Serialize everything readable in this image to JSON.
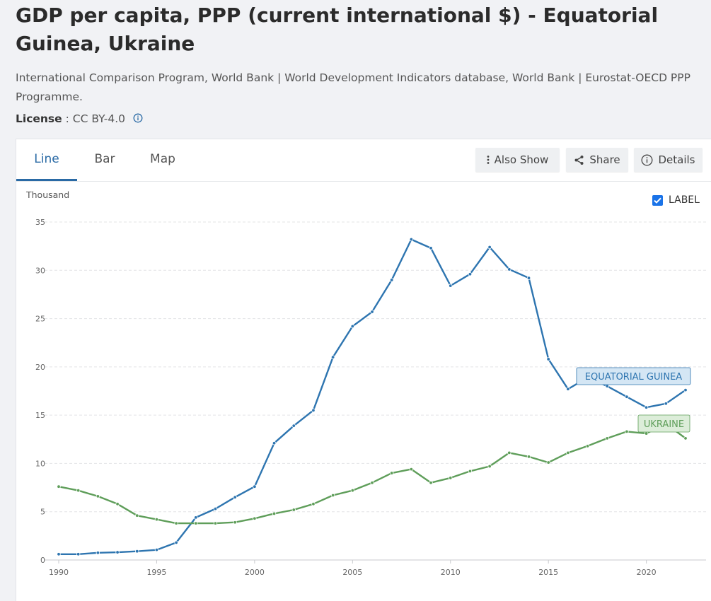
{
  "page": {
    "title": "GDP per capita, PPP (current international $) - Equatorial Guinea, Ukraine",
    "sources": "International Comparison Program, World Bank | World Development Indicators database, World Bank | Eurostat-OECD PPP Programme.",
    "license_label": "License",
    "license_sep": " : ",
    "license_value": "CC BY-4.0"
  },
  "tabs": {
    "line": "Line",
    "bar": "Bar",
    "map": "Map"
  },
  "toolbar": {
    "also_show": "Also Show",
    "share": "Share",
    "details": "Details"
  },
  "chart": {
    "y_unit": "Thousand",
    "label_toggle": "LABEL",
    "label_checked": true
  },
  "colors": {
    "equatorial_guinea": "#2e75b0",
    "ukraine": "#5f9e5a",
    "accent": "#2a6aa5"
  },
  "icons": [
    "more-vertical-icon",
    "share-icon",
    "info-icon",
    "checkbox-checked-icon"
  ],
  "chart_data": {
    "type": "line",
    "title": "GDP per capita, PPP (current international $) - Equatorial Guinea, Ukraine",
    "ylabel": "Thousand",
    "xlabel": "",
    "xlim": [
      1990,
      2022
    ],
    "ylim": [
      0,
      35
    ],
    "grid": true,
    "x_ticks": [
      1990,
      1995,
      2000,
      2005,
      2010,
      2015,
      2020
    ],
    "y_ticks": [
      0,
      5,
      10,
      15,
      20,
      25,
      30,
      35
    ],
    "x": [
      1990,
      1991,
      1992,
      1993,
      1994,
      1995,
      1996,
      1997,
      1998,
      1999,
      2000,
      2001,
      2002,
      2003,
      2004,
      2005,
      2006,
      2007,
      2008,
      2009,
      2010,
      2011,
      2012,
      2013,
      2014,
      2015,
      2016,
      2017,
      2018,
      2019,
      2020,
      2021,
      2022
    ],
    "series": [
      {
        "name": "Equatorial Guinea",
        "label": "EQUATORIAL GUINEA",
        "color": "#2e75b0",
        "values": [
          0.6,
          0.6,
          0.75,
          0.8,
          0.9,
          1.05,
          1.8,
          4.4,
          5.3,
          6.5,
          7.6,
          12.1,
          13.9,
          15.5,
          21.0,
          24.2,
          25.7,
          29.0,
          33.2,
          32.3,
          28.4,
          29.6,
          32.4,
          30.1,
          29.2,
          20.8,
          17.7,
          18.9,
          18.0,
          16.9,
          15.8,
          16.2,
          17.6
        ]
      },
      {
        "name": "Ukraine",
        "label": "UKRAINE",
        "color": "#5f9e5a",
        "values": [
          7.6,
          7.2,
          6.6,
          5.8,
          4.6,
          4.2,
          3.8,
          3.8,
          3.8,
          3.9,
          4.3,
          4.8,
          5.2,
          5.8,
          6.7,
          7.2,
          8.0,
          9.0,
          9.4,
          8.0,
          8.5,
          9.2,
          9.7,
          11.1,
          10.7,
          10.1,
          11.1,
          11.8,
          12.6,
          13.3,
          13.1,
          14.1,
          12.6
        ]
      }
    ]
  }
}
